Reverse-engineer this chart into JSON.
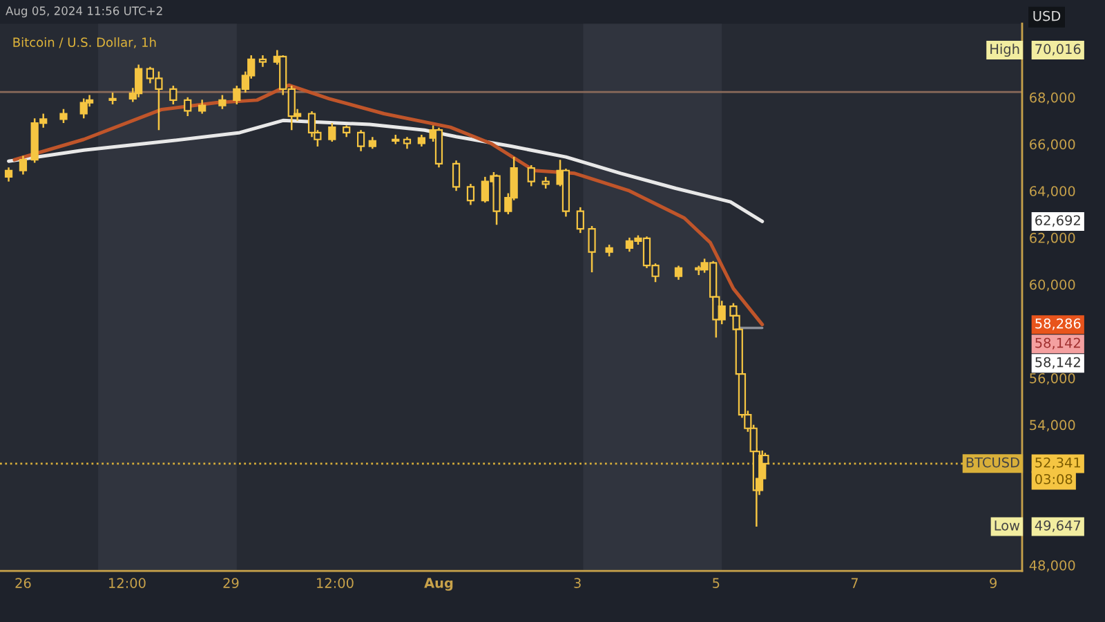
{
  "chart_data": {
    "type": "candlestick",
    "title": "Bitcoin / U.S. Dollar, 1h",
    "subtitle": "Aug 05, 2024 11:56 UTC+2",
    "ylabel": "USD",
    "x": [
      "2024-07-25T19:00",
      "2024-07-26T00:00",
      "2024-07-26T04:00",
      "2024-07-26T07:00",
      "2024-07-26T14:00",
      "2024-07-26T21:00",
      "2024-07-26T23:00",
      "2024-07-27T07:00",
      "2024-07-27T14:00",
      "2024-07-27T16:00",
      "2024-07-27T20:00",
      "2024-07-27T23:00",
      "2024-07-28T04:00",
      "2024-07-28T09:00",
      "2024-07-28T14:00",
      "2024-07-28T21:00",
      "2024-07-29T02:00",
      "2024-07-29T05:00",
      "2024-07-29T07:00",
      "2024-07-29T11:00",
      "2024-07-29T16:00",
      "2024-07-29T18:00",
      "2024-07-29T21:00",
      "2024-07-29T23:00",
      "2024-07-30T04:00",
      "2024-07-30T06:00",
      "2024-07-30T11:00",
      "2024-07-30T16:00",
      "2024-07-30T21:00",
      "2024-07-31T01:00",
      "2024-07-31T09:00",
      "2024-07-31T13:00",
      "2024-07-31T18:00",
      "2024-07-31T22:00",
      "2024-08-01T00:00",
      "2024-08-01T06:00",
      "2024-08-01T11:00",
      "2024-08-01T16:00",
      "2024-08-01T19:00",
      "2024-08-01T20:00",
      "2024-08-02T00:00",
      "2024-08-02T02:00",
      "2024-08-02T08:00",
      "2024-08-02T13:00",
      "2024-08-02T18:00",
      "2024-08-02T20:00",
      "2024-08-03T01:00",
      "2024-08-03T05:00",
      "2024-08-03T11:00",
      "2024-08-03T18:00",
      "2024-08-03T21:00",
      "2024-08-04T00:00",
      "2024-08-04T03:00",
      "2024-08-04T11:00",
      "2024-08-04T18:00",
      "2024-08-04T20:00",
      "2024-08-04T23:00",
      "2024-08-05T00:00",
      "2024-08-05T02:00",
      "2024-08-05T06:00",
      "2024-08-05T07:00",
      "2024-08-05T08:00",
      "2024-08-05T09:00",
      "2024-08-05T11:00",
      "2024-08-05T13:00",
      "2024-08-05T14:00",
      "2024-08-05T15:00",
      "2024-08-05T16:00",
      "2024-08-05T17:00"
    ],
    "ohlc": [
      [
        64600,
        65000,
        64400,
        64870
      ],
      [
        64870,
        65500,
        64700,
        65330
      ],
      [
        65330,
        67100,
        65200,
        66900
      ],
      [
        66900,
        67300,
        66700,
        67070
      ],
      [
        67070,
        67500,
        66900,
        67300
      ],
      [
        67300,
        67950,
        67100,
        67770
      ],
      [
        67770,
        68100,
        67600,
        67880
      ],
      [
        67880,
        68200,
        67700,
        67940
      ],
      [
        67940,
        68400,
        67800,
        68170
      ],
      [
        68170,
        69400,
        68000,
        69220
      ],
      [
        69220,
        69300,
        68600,
        68810
      ],
      [
        68810,
        69100,
        66600,
        68350
      ],
      [
        68350,
        68500,
        67700,
        67880
      ],
      [
        67880,
        68000,
        67200,
        67420
      ],
      [
        67420,
        67900,
        67300,
        67650
      ],
      [
        67650,
        68100,
        67500,
        67880
      ],
      [
        67880,
        68500,
        67700,
        68350
      ],
      [
        68350,
        69100,
        68200,
        68930
      ],
      [
        68930,
        69800,
        68800,
        69620
      ],
      [
        69620,
        69800,
        69300,
        69510
      ],
      [
        69510,
        70016,
        69400,
        69740
      ],
      [
        69740,
        69800,
        68100,
        68350
      ],
      [
        68350,
        68500,
        66600,
        67190
      ],
      [
        67190,
        67500,
        67000,
        67300
      ],
      [
        67300,
        67400,
        66300,
        66490
      ],
      [
        66490,
        66600,
        65900,
        66200
      ],
      [
        66200,
        66900,
        66100,
        66720
      ],
      [
        66720,
        66800,
        66300,
        66490
      ],
      [
        66490,
        66600,
        65700,
        65910
      ],
      [
        65910,
        66300,
        65800,
        66140
      ],
      [
        66140,
        66400,
        66000,
        66200
      ],
      [
        66200,
        66300,
        65800,
        66030
      ],
      [
        66030,
        66400,
        65900,
        66260
      ],
      [
        66260,
        66800,
        66100,
        66600
      ],
      [
        66600,
        66700,
        65000,
        65160
      ],
      [
        65160,
        65300,
        64000,
        64170
      ],
      [
        64170,
        64300,
        63400,
        63590
      ],
      [
        63590,
        64600,
        63500,
        64400
      ],
      [
        64400,
        64800,
        64200,
        64640
      ],
      [
        64640,
        64700,
        62550,
        63130
      ],
      [
        63130,
        63900,
        63000,
        63710
      ],
      [
        63710,
        65450,
        63600,
        64980
      ],
      [
        64980,
        65100,
        64200,
        64400
      ],
      [
        64400,
        64600,
        64100,
        64290
      ],
      [
        64290,
        65330,
        64200,
        64870
      ],
      [
        64870,
        64950,
        62900,
        63130
      ],
      [
        63130,
        63300,
        62200,
        62380
      ],
      [
        62380,
        62500,
        60520,
        61390
      ],
      [
        61390,
        61700,
        61200,
        61560
      ],
      [
        61560,
        62000,
        61400,
        61850
      ],
      [
        61850,
        62100,
        61700,
        61970
      ],
      [
        61970,
        62050,
        60700,
        60810
      ],
      [
        60810,
        60900,
        60100,
        60350
      ],
      [
        60350,
        60800,
        60200,
        60700
      ],
      [
        60700,
        60800,
        60400,
        60630
      ],
      [
        60630,
        61100,
        60500,
        60920
      ],
      [
        60920,
        61000,
        59300,
        59470
      ],
      [
        59470,
        59600,
        57730,
        58500
      ],
      [
        58500,
        59300,
        58300,
        59070
      ],
      [
        59070,
        59200,
        58500,
        58660
      ],
      [
        58660,
        58800,
        57900,
        58080
      ],
      [
        58080,
        58200,
        56000,
        56170
      ],
      [
        56170,
        56300,
        54300,
        54430
      ],
      [
        54430,
        54600,
        53700,
        53850
      ],
      [
        53850,
        54000,
        52700,
        52860
      ],
      [
        52860,
        53000,
        49647,
        51200
      ],
      [
        51200,
        51900,
        51000,
        51700
      ],
      [
        51700,
        52900,
        51500,
        52690
      ],
      [
        52690,
        52800,
        52200,
        52341
      ]
    ],
    "color": "#f5c542",
    "series": [
      {
        "type": "line",
        "color": "#e8e8e8",
        "x": [
          "2024-07-25T19:00",
          "2024-07-26T21:00",
          "2024-07-28T03:00",
          "2024-07-29T03:00",
          "2024-07-29T18:00",
          "2024-07-31T00:00",
          "2024-07-31T19:00",
          "2024-08-01T06:00",
          "2024-08-02T01:00",
          "2024-08-02T20:00",
          "2024-08-03T15:00",
          "2024-08-04T10:00",
          "2024-08-05T05:00",
          "2024-08-05T16:00"
        ],
        "values": [
          65270,
          65740,
          66140,
          66490,
          67010,
          66840,
          66600,
          66320,
          65910,
          65450,
          64750,
          64110,
          63530,
          62692
        ]
      },
      {
        "type": "line",
        "color": "#8a8e98",
        "x": [
          "2024-08-05T07:00",
          "2024-08-05T16:00"
        ],
        "values": [
          58142,
          58142
        ]
      },
      {
        "type": "line",
        "color": "#c0552a",
        "x": [
          "2024-07-25T21:00",
          "2024-07-26T21:00",
          "2024-07-28T00:00",
          "2024-07-28T19:00",
          "2024-07-29T09:00",
          "2024-07-29T20:00",
          "2024-07-30T10:00",
          "2024-07-31T05:00",
          "2024-08-01T04:00",
          "2024-08-01T18:00",
          "2024-08-02T09:00",
          "2024-08-02T23:00",
          "2024-08-03T18:00",
          "2024-08-04T13:00",
          "2024-08-04T22:00",
          "2024-08-05T06:00",
          "2024-08-05T16:00"
        ],
        "values": [
          65330,
          66200,
          67480,
          67770,
          67880,
          68520,
          67940,
          67300,
          66720,
          66030,
          64870,
          64750,
          64000,
          62840,
          61790,
          59820,
          58286
        ]
      }
    ],
    "xlim": [
      "2024-07-25T16:00",
      "2024-08-09T10:00"
    ],
    "xticks": [
      {
        "value": "2024-07-26",
        "label": "26"
      },
      {
        "value": "2024-07-27T12:00",
        "label": "12:00"
      },
      {
        "value": "2024-07-29",
        "label": "29"
      },
      {
        "value": "2024-07-30T12:00",
        "label": "12:00"
      },
      {
        "value": "2024-08-01",
        "label": "Aug"
      },
      {
        "value": "2024-08-03",
        "label": "3"
      },
      {
        "value": "2024-08-05",
        "label": "5"
      },
      {
        "value": "2024-08-07",
        "label": "7"
      },
      {
        "value": "2024-08-09",
        "label": "9"
      }
    ],
    "ylim": [
      47750,
      71150
    ],
    "yticks": [
      {
        "value": 48000,
        "label": "48,000"
      },
      {
        "value": 54000,
        "label": "54,000"
      },
      {
        "value": 56000,
        "label": "56,000"
      },
      {
        "value": 60000,
        "label": "60,000"
      },
      {
        "value": 62000,
        "label": "62,000"
      },
      {
        "value": 64000,
        "label": "64,000"
      },
      {
        "value": 66000,
        "label": "66,000"
      },
      {
        "value": 68000,
        "label": "68,000"
      }
    ],
    "ref_lines": [
      {
        "axis": "y",
        "value": 68230,
        "color": "#8a6a5a",
        "line_style": "solid"
      },
      {
        "axis": "y",
        "value": 52341,
        "label": "BTCUSD",
        "color": "#d9b03a",
        "line_style": "dotted"
      }
    ],
    "bands": [
      {
        "axis": "x",
        "from": "2024-07-27T02:00",
        "to": "2024-07-29T02:00",
        "color": "#30343e"
      },
      {
        "axis": "x",
        "from": "2024-08-03T02:00",
        "to": "2024-08-05T02:00",
        "color": "#30343e"
      }
    ],
    "annotations": [
      "High",
      "70,016",
      "62,692",
      "58,286",
      "58,142",
      "58,142",
      "52,341",
      "03:08",
      "Low",
      "49,647"
    ],
    "grid": false,
    "legend": false
  }
}
